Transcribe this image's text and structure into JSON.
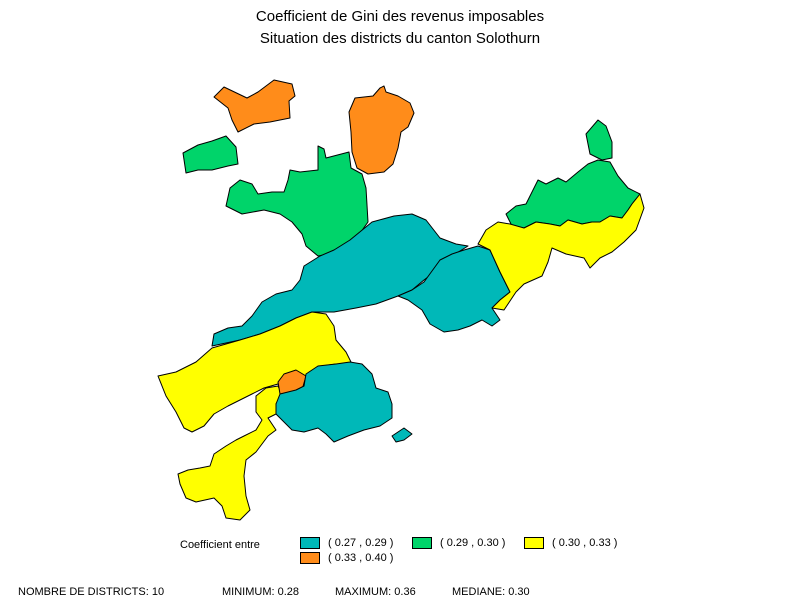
{
  "title": {
    "line1": "Coefficient de Gini des revenus imposables",
    "line2": "Situation des districts du canton Solothurn"
  },
  "colors": {
    "class_1": "#00b8b8",
    "class_2": "#00d46a",
    "class_3": "#ffff00",
    "class_4": "#ff8c1a"
  },
  "map": {
    "regions": [
      {
        "name": "district-north-west-exclave",
        "class": "class_4"
      },
      {
        "name": "district-dorneck",
        "class": "class_4"
      },
      {
        "name": "district-leimental-exclave",
        "class": "class_2"
      },
      {
        "name": "district-thierstein",
        "class": "class_2"
      },
      {
        "name": "district-olten-north",
        "class": "class_2"
      },
      {
        "name": "district-olten-north-exclave",
        "class": "class_2"
      },
      {
        "name": "district-thal",
        "class": "class_1"
      },
      {
        "name": "district-gaeu",
        "class": "class_1"
      },
      {
        "name": "district-goesgen",
        "class": "class_3"
      },
      {
        "name": "district-lebern",
        "class": "class_3"
      },
      {
        "name": "district-bucheggberg",
        "class": "class_3"
      },
      {
        "name": "district-solothurn",
        "class": "class_4"
      },
      {
        "name": "district-wasseramt",
        "class": "class_1"
      },
      {
        "name": "district-wasseramt-exclave",
        "class": "class_1"
      }
    ]
  },
  "legend": {
    "label": "Coefficient entre",
    "items": [
      {
        "label": "( 0.27 , 0.29 )",
        "class": "class_1"
      },
      {
        "label": "( 0.29 , 0.30 )",
        "class": "class_2"
      },
      {
        "label": "( 0.30 , 0.33 )",
        "class": "class_3"
      },
      {
        "label": "( 0.33 , 0.40 )",
        "class": "class_4"
      }
    ]
  },
  "footer": {
    "count": "NOMBRE DE DISTRICTS: 10",
    "minimum": "MINIMUM: 0.28",
    "maximum": "MAXIMUM: 0.36",
    "median": "MEDIANE: 0.30"
  }
}
